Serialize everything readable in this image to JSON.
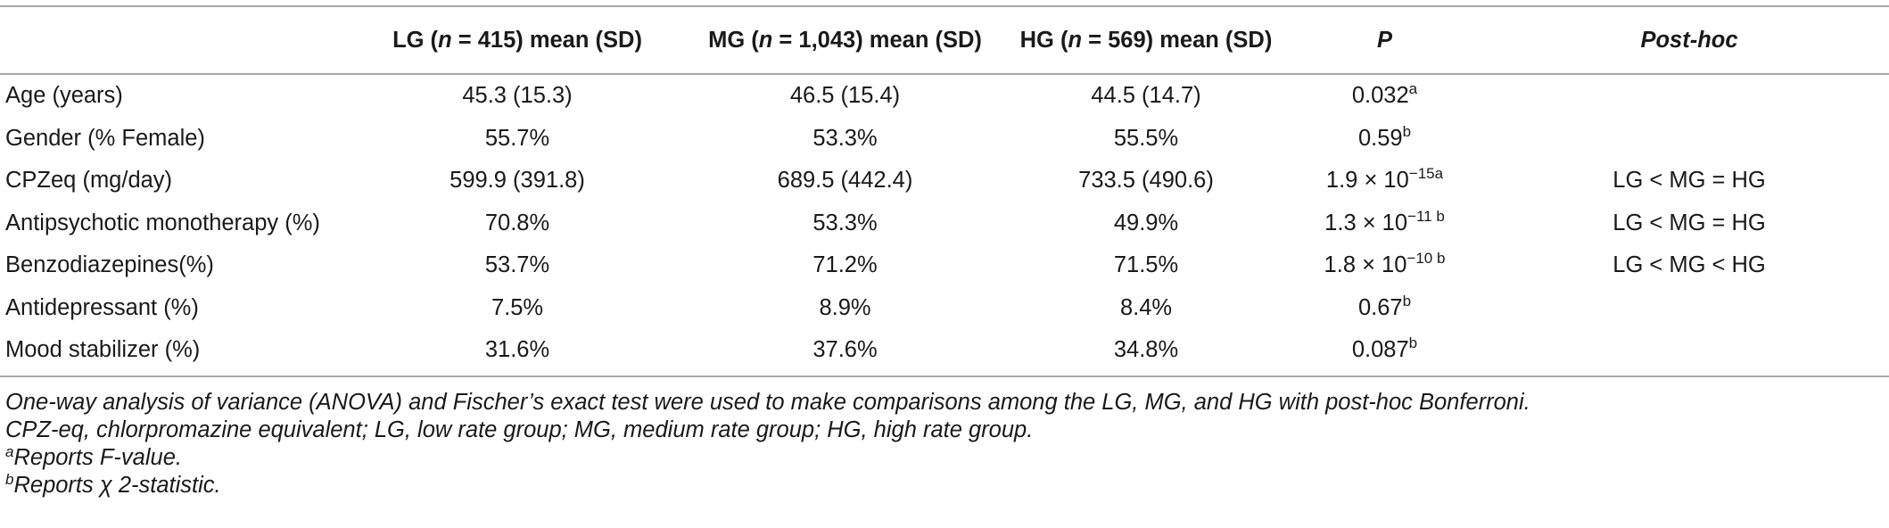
{
  "table": {
    "headers": {
      "col0": "",
      "lg": {
        "pre": "LG (",
        "n_var": "n",
        "rest": " = 415) mean (SD)"
      },
      "mg": {
        "pre": "MG (",
        "n_var": "n",
        "rest": " = 1,043) mean (SD)"
      },
      "hg": {
        "pre": "HG (",
        "n_var": "n",
        "rest": " = 569) mean (SD)"
      },
      "p": "P",
      "posthoc": "Post-hoc"
    },
    "rows": [
      {
        "label": "Age (years)",
        "lg": "45.3 (15.3)",
        "mg": "46.5 (15.4)",
        "hg": "44.5 (14.7)",
        "p": "0.032",
        "p_sup": "a",
        "posthoc": ""
      },
      {
        "label": "Gender (% Female)",
        "lg": "55.7%",
        "mg": "53.3%",
        "hg": "55.5%",
        "p": "0.59",
        "p_sup": "b",
        "posthoc": ""
      },
      {
        "label": "CPZeq (mg/day)",
        "lg": "599.9 (391.8)",
        "mg": "689.5 (442.4)",
        "hg": "733.5 (490.6)",
        "p": "1.9 × 10",
        "p_sup": "−15a",
        "posthoc": "LG < MG = HG"
      },
      {
        "label": "Antipsychotic monotherapy (%)",
        "lg": "70.8%",
        "mg": "53.3%",
        "hg": "49.9%",
        "p": "1.3 × 10",
        "p_sup": "−11 b",
        "posthoc": "LG < MG = HG"
      },
      {
        "label": "Benzodiazepines(%)",
        "lg": "53.7%",
        "mg": "71.2%",
        "hg": "71.5%",
        "p": "1.8 × 10",
        "p_sup": "−10 b",
        "posthoc": "LG < MG < HG"
      },
      {
        "label": "Antidepressant (%)",
        "lg": "7.5%",
        "mg": "8.9%",
        "hg": "8.4%",
        "p": "0.67",
        "p_sup": "b",
        "posthoc": ""
      },
      {
        "label": "Mood stabilizer (%)",
        "lg": "31.6%",
        "mg": "37.6%",
        "hg": "34.8%",
        "p": "0.087",
        "p_sup": "b",
        "posthoc": ""
      }
    ]
  },
  "notes": {
    "line1": "One-way analysis of variance (ANOVA) and Fischer’s exact test were used to make comparisons among the LG, MG, and HG with post-hoc Bonferroni.",
    "line2": "CPZ-eq, chlorpromazine equivalent; LG, low rate group; MG, medium rate group; HG, high rate group.",
    "fn_a": {
      "mark": "a",
      "text": "Reports F-value."
    },
    "fn_b": {
      "mark": "b",
      "text": "Reports χ 2-statistic."
    }
  }
}
